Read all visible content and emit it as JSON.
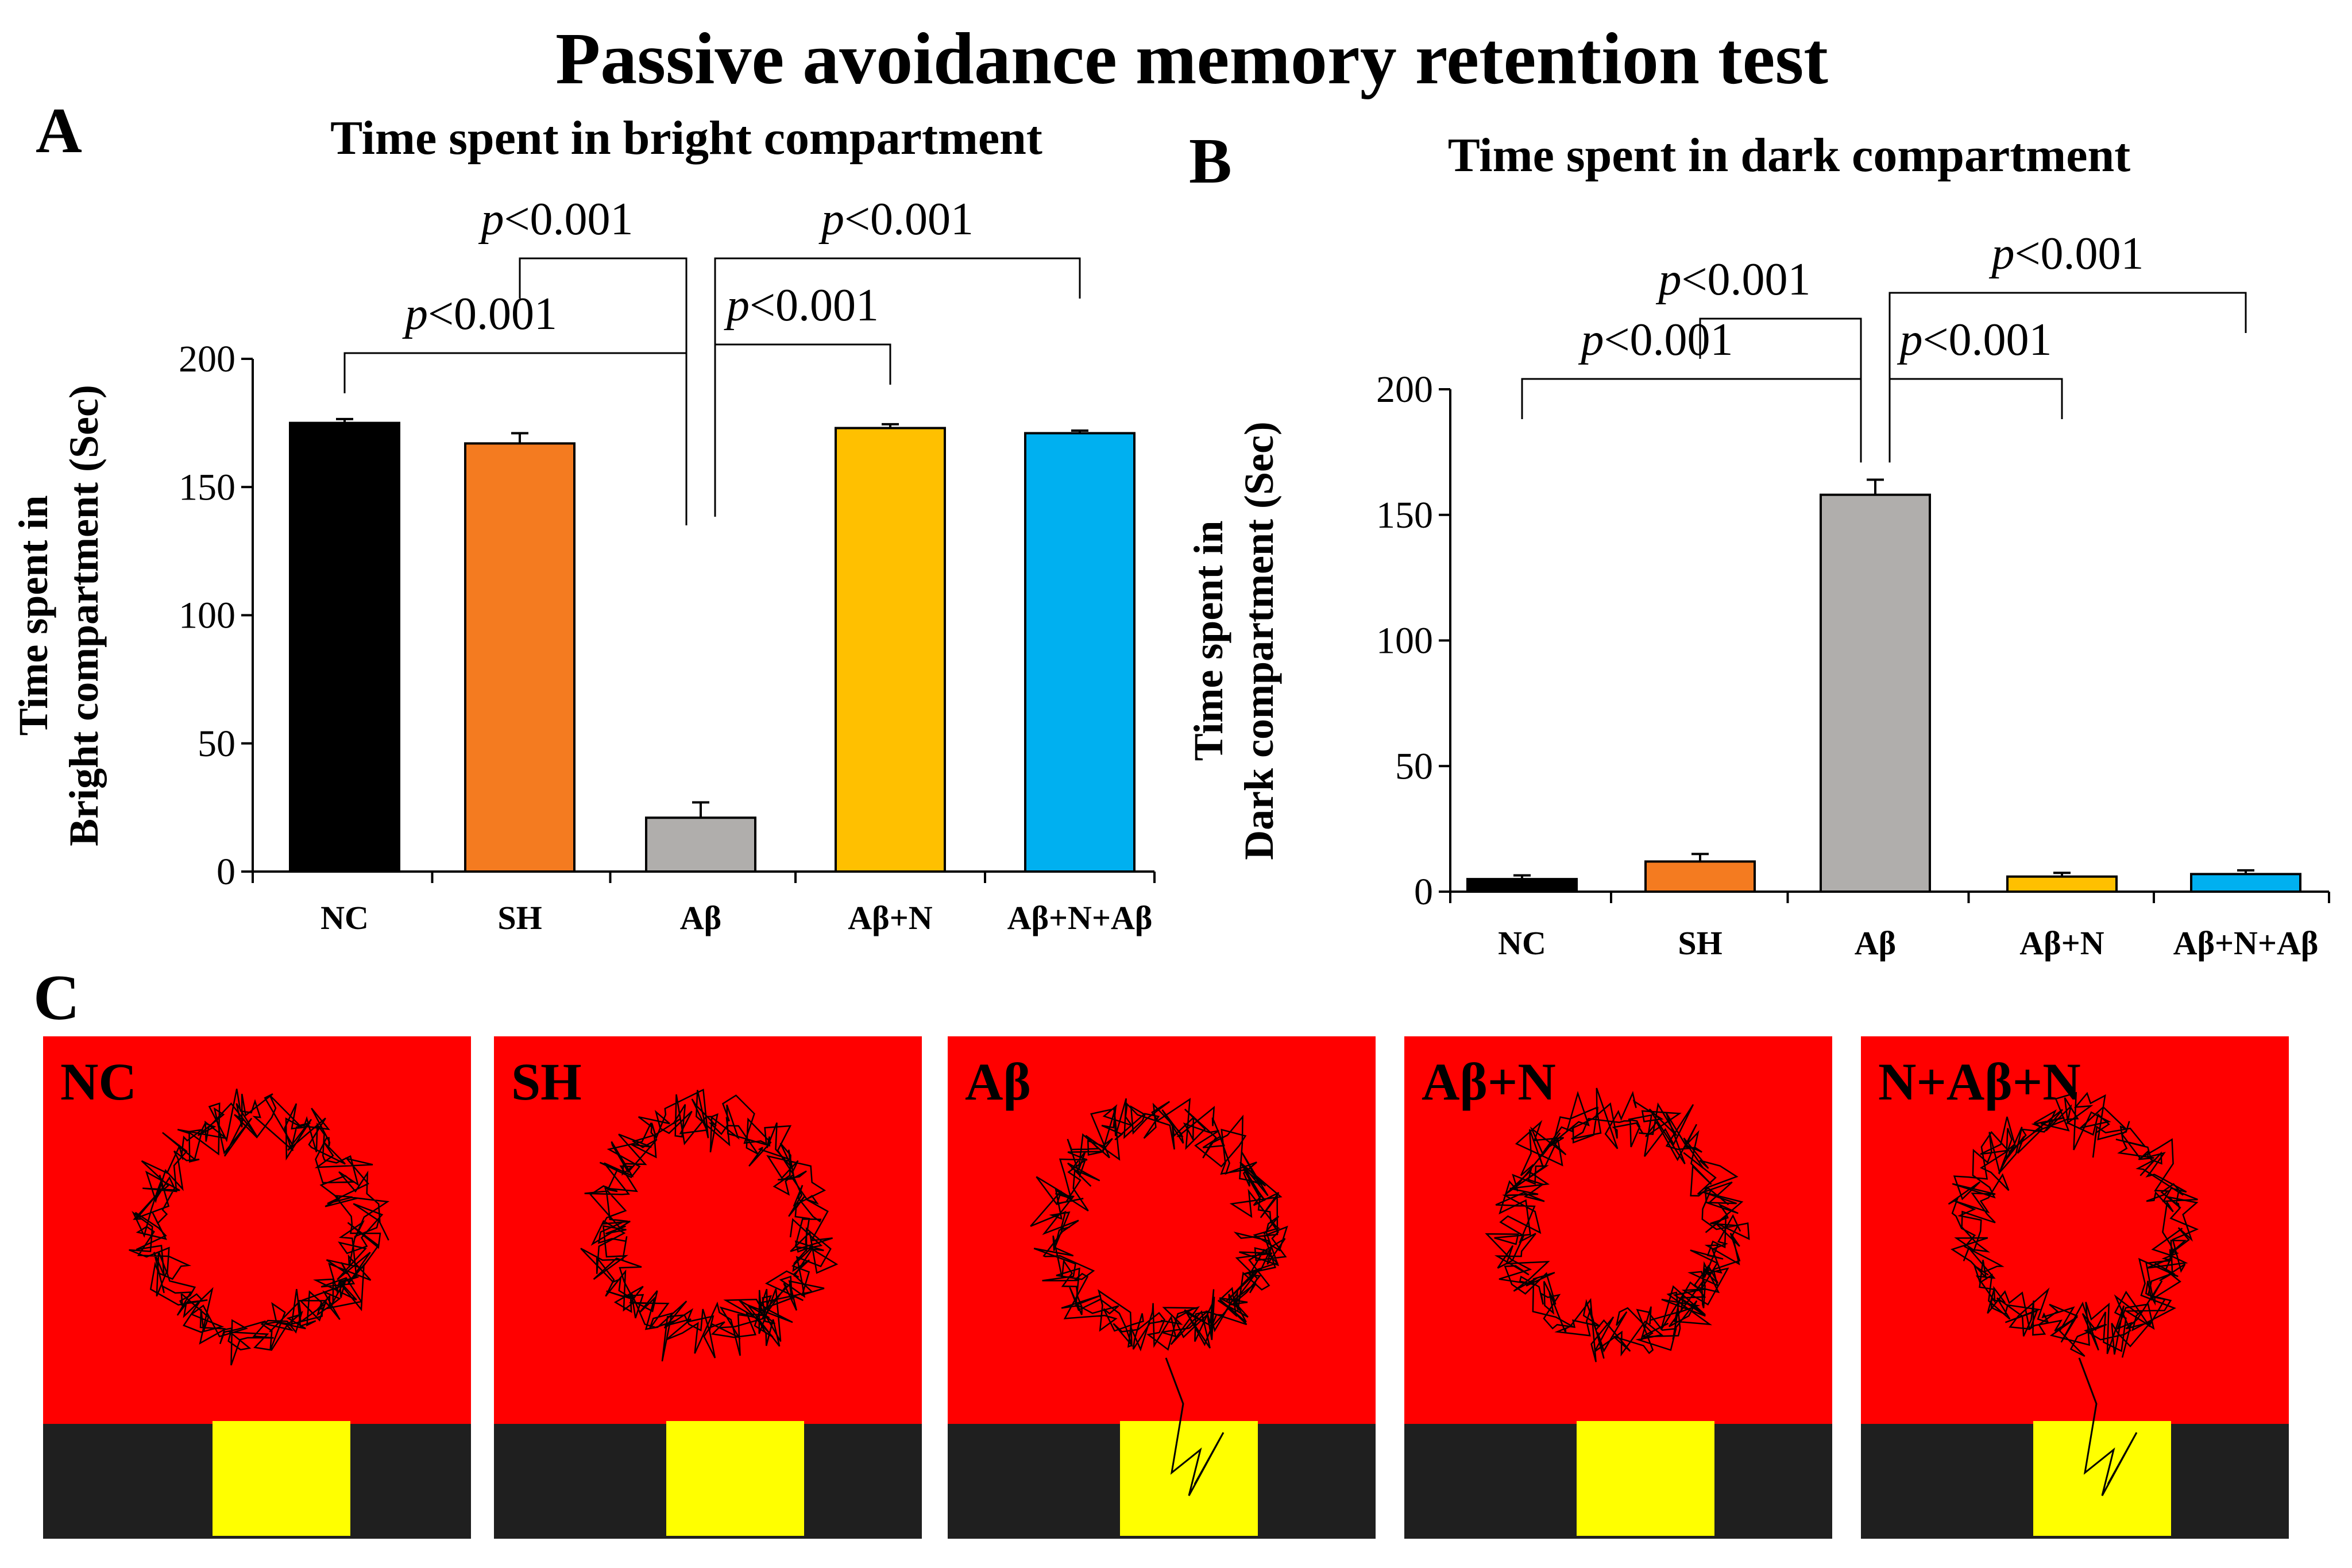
{
  "figure": {
    "title": "Passive avoidance memory retention test",
    "panel_c_label": "C"
  },
  "chart_data": [
    {
      "panel": "A",
      "type": "bar",
      "title": "Time spent in bright compartment",
      "ylabel": [
        "Time spent in",
        "Bright compartment (Sec)"
      ],
      "xlabel": "",
      "categories": [
        "NC",
        "SH",
        "Aβ",
        "Aβ+N",
        "Aβ+N+Aβ"
      ],
      "values": [
        175,
        167,
        21,
        173,
        171
      ],
      "errors": [
        1.5,
        4,
        6,
        1.5,
        1
      ],
      "colors": [
        "#000000",
        "#f47b20",
        "#b0aeac",
        "#ffc000",
        "#00b0f0"
      ],
      "ylim": [
        0,
        200
      ],
      "yticks": [
        0,
        50,
        100,
        150,
        200
      ],
      "comparisons": [
        {
          "from": 0,
          "to": 2,
          "label": "p<0.001"
        },
        {
          "from": 1,
          "to": 2,
          "label": "p<0.001"
        },
        {
          "from": 2,
          "to": 3,
          "label": "p<0.001"
        },
        {
          "from": 2,
          "to": 4,
          "label": "p<0.001"
        }
      ]
    },
    {
      "panel": "B",
      "type": "bar",
      "title": "Time spent in dark compartment",
      "ylabel": [
        "Time spent in",
        "Dark compartment (Sec)"
      ],
      "xlabel": "",
      "categories": [
        "NC",
        "SH",
        "Aβ",
        "Aβ+N",
        "Aβ+N+Aβ"
      ],
      "values": [
        5,
        12,
        158,
        6,
        7
      ],
      "errors": [
        1.5,
        3,
        6,
        1.5,
        1.5
      ],
      "colors": [
        "#000000",
        "#f47b20",
        "#b0aeac",
        "#ffc000",
        "#00b0f0"
      ],
      "ylim": [
        0,
        200
      ],
      "yticks": [
        0,
        50,
        100,
        150,
        200
      ],
      "comparisons": [
        {
          "from": 0,
          "to": 2,
          "label": "p<0.001"
        },
        {
          "from": 1,
          "to": 2,
          "label": "p<0.001"
        },
        {
          "from": 2,
          "to": 3,
          "label": "p<0.001"
        },
        {
          "from": 2,
          "to": 4,
          "label": "p<0.001"
        }
      ]
    }
  ],
  "tracking_panels": [
    {
      "label": "NC"
    },
    {
      "label": "SH"
    },
    {
      "label": "Aβ"
    },
    {
      "label": "Aβ+N"
    },
    {
      "label": "N+Aβ+N"
    }
  ],
  "colors": {
    "arena_bright": "#ff0000",
    "dark_compartment": "#1f1f1f",
    "door": "#ffff00",
    "track": "#000000"
  }
}
